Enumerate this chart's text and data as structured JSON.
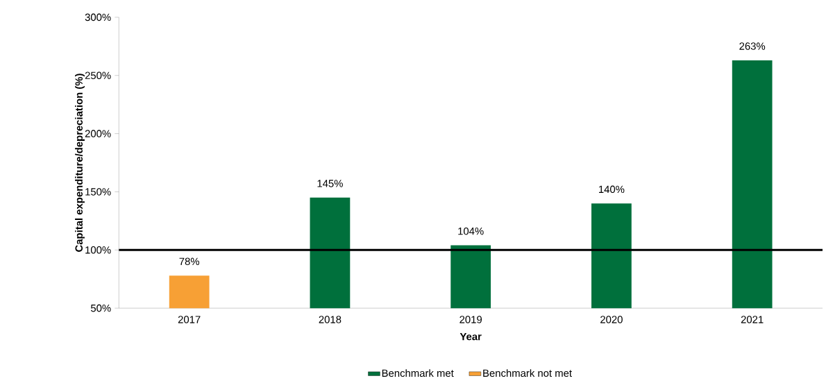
{
  "chart_data": {
    "type": "bar",
    "xlabel": "Year",
    "ylabel": "Capital expenditure/depreciation (%)",
    "categories": [
      "2017",
      "2018",
      "2019",
      "2020",
      "2021"
    ],
    "series": [
      {
        "name": "Benchmark met",
        "color": "#00703c",
        "values": [
          null,
          145,
          104,
          140,
          263
        ],
        "value_labels": [
          null,
          "145%",
          "104%",
          "140%",
          "263%"
        ]
      },
      {
        "name": "Benchmark not met",
        "color": "#f7a035",
        "values": [
          78,
          null,
          null,
          null,
          null
        ],
        "value_labels": [
          "78%",
          null,
          null,
          null,
          null
        ]
      }
    ],
    "ylim": [
      50,
      300
    ],
    "yticks": [
      {
        "value": 50,
        "label": "50%"
      },
      {
        "value": 100,
        "label": "100%"
      },
      {
        "value": 150,
        "label": "150%"
      },
      {
        "value": 200,
        "label": "200%"
      },
      {
        "value": 250,
        "label": "250%"
      },
      {
        "value": 300,
        "label": "300%"
      }
    ],
    "ref_lines": [
      {
        "axis": "y",
        "value": 100,
        "color": "#000000"
      }
    ],
    "grid": false,
    "legend": "bottom"
  }
}
